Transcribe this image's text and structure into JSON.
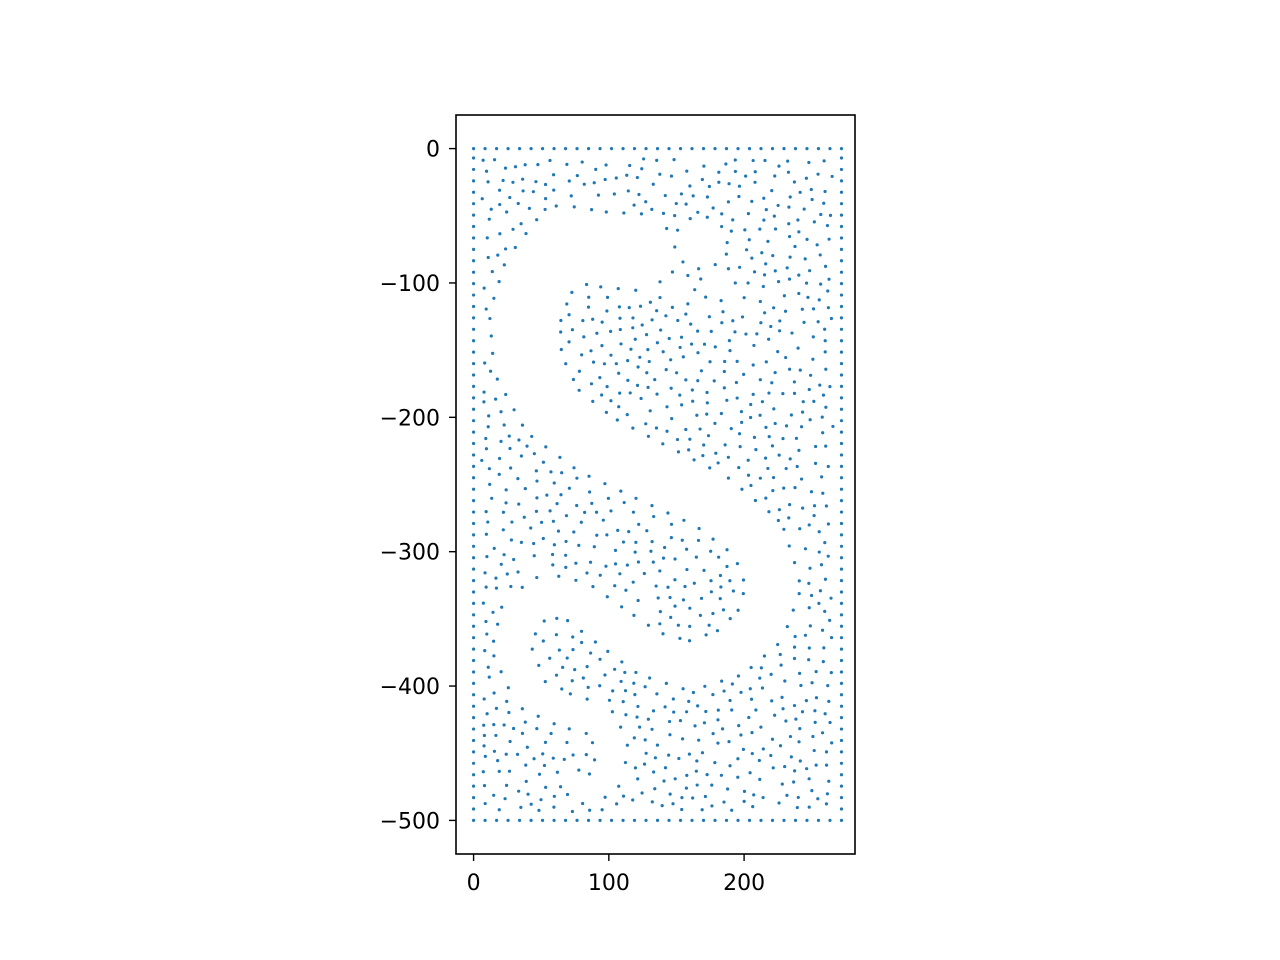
{
  "chart_data": {
    "type": "scatter",
    "title": "",
    "xlabel": "",
    "ylabel": "",
    "xlim": [
      -13,
      282
    ],
    "ylim": [
      -525,
      25
    ],
    "aspect": "equal",
    "grid": false,
    "legend": "none",
    "marker_color": "#1f77b4",
    "x_ticks": [
      {
        "value": 0,
        "label": "0"
      },
      {
        "value": 100,
        "label": "100"
      },
      {
        "value": 200,
        "label": "200"
      }
    ],
    "y_ticks": [
      {
        "value": 0,
        "label": "0"
      },
      {
        "value": -100,
        "label": "−100"
      },
      {
        "value": -200,
        "label": "−200"
      },
      {
        "value": -300,
        "label": "−300"
      },
      {
        "value": -400,
        "label": "−400"
      },
      {
        "value": -500,
        "label": "−500"
      }
    ],
    "domain": {
      "x": [
        0,
        272
      ],
      "y": [
        -500,
        0
      ]
    },
    "approx_point_count": 2200,
    "void_region_description_free": true,
    "s_band": {
      "center_path": [
        [
          122,
          -77
        ],
        [
          95,
          -75
        ],
        [
          68,
          -70
        ],
        [
          48,
          -95
        ],
        [
          38,
          -125
        ],
        [
          40,
          -160
        ],
        [
          58,
          -195
        ],
        [
          90,
          -220
        ],
        [
          130,
          -240
        ],
        [
          175,
          -262
        ],
        [
          210,
          -290
        ],
        [
          222,
          -325
        ],
        [
          212,
          -355
        ],
        [
          190,
          -375
        ],
        [
          160,
          -385
        ],
        [
          130,
          -376
        ],
        [
          105,
          -358
        ],
        [
          78,
          -338
        ],
        [
          55,
          -332
        ],
        [
          35,
          -345
        ],
        [
          28,
          -372
        ],
        [
          42,
          -405
        ],
        [
          68,
          -418
        ],
        [
          92,
          -425
        ],
        [
          102,
          -443
        ],
        [
          100,
          -466
        ],
        [
          86,
          -478
        ],
        [
          72,
          -470
        ]
      ],
      "half_width_start": 27,
      "half_width_end": 9
    },
    "extra_voids": [
      {
        "x": 168,
        "y": -70,
        "r": 18
      },
      {
        "x": 150,
        "y": -105,
        "r": 12
      },
      {
        "x": 180,
        "y": -100,
        "r": 12
      }
    ],
    "ring": {
      "x": 198,
      "y": -172,
      "r": 14
    }
  }
}
